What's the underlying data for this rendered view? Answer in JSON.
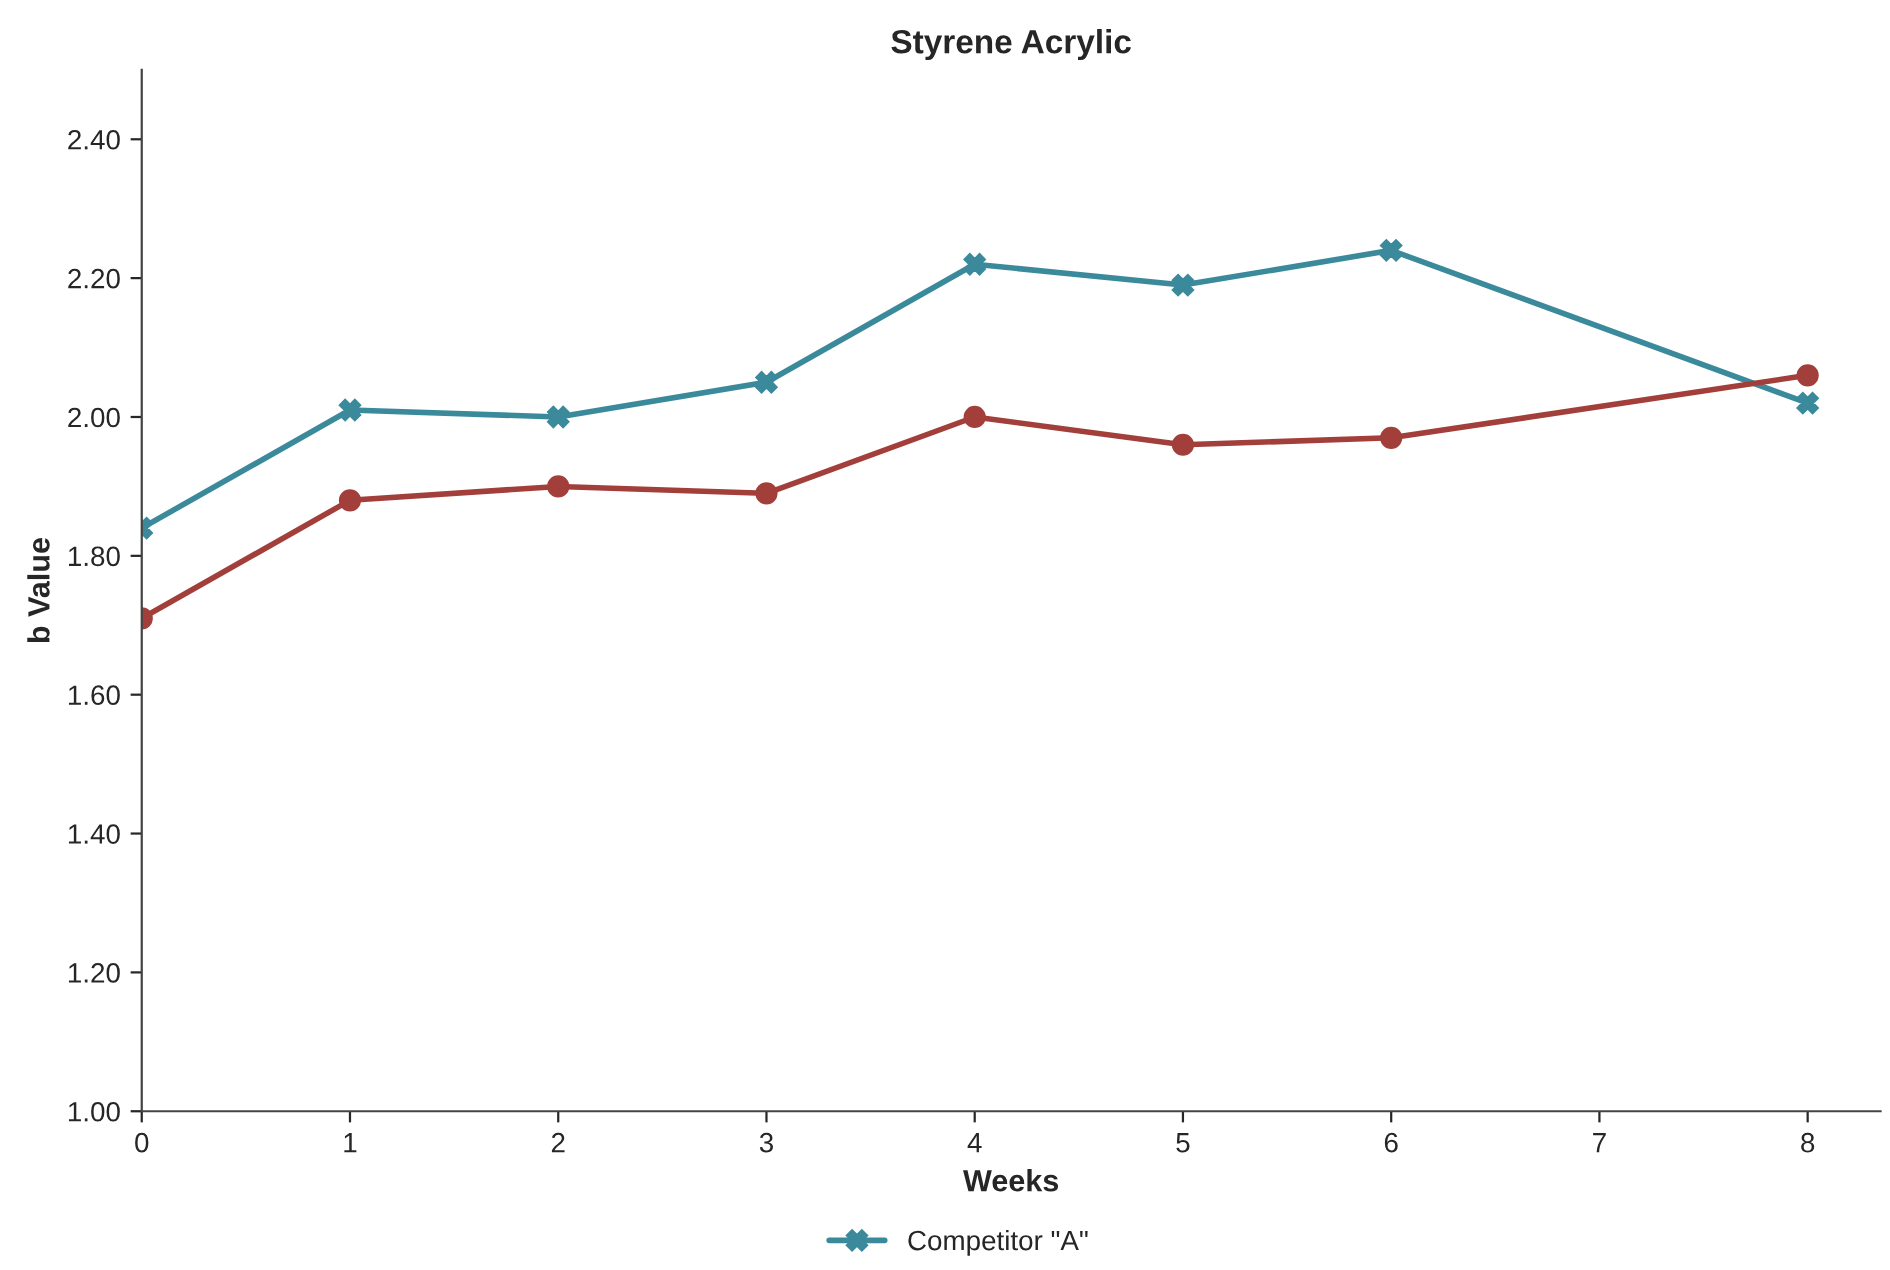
{
  "chart_data": {
    "type": "line",
    "title": "Styrene Acrylic",
    "xlabel": "Weeks",
    "ylabel": "b Value",
    "xlim": [
      0,
      8.35
    ],
    "xticks": [
      0,
      1,
      2,
      3,
      4,
      5,
      6,
      7,
      8
    ],
    "ylim": [
      1.0,
      2.5
    ],
    "yticks": [
      {
        "value": 1.0,
        "label": "1.00"
      },
      {
        "value": 1.2,
        "label": "1.20"
      },
      {
        "value": 1.4,
        "label": "1.40"
      },
      {
        "value": 1.6,
        "label": "1.60"
      },
      {
        "value": 1.8,
        "label": "1.80"
      },
      {
        "value": 2.0,
        "label": "2.00"
      },
      {
        "value": 2.2,
        "label": "2.20"
      },
      {
        "value": 2.4,
        "label": "2.40"
      }
    ],
    "grid": false,
    "legend": "bottom",
    "series": [
      {
        "name": "Competitor \"A\"",
        "color": "#3b8a9c",
        "marker": "cross",
        "x": [
          0,
          1,
          2,
          3,
          4,
          5,
          6,
          8
        ],
        "values": [
          1.84,
          2.01,
          2.0,
          2.05,
          2.22,
          2.19,
          2.24,
          2.02
        ]
      },
      {
        "color": "#a33f3b",
        "marker": "circle",
        "x": [
          0,
          1,
          2,
          3,
          4,
          5,
          6,
          8
        ],
        "values": [
          1.71,
          1.88,
          1.9,
          1.89,
          2.0,
          1.96,
          1.97,
          2.06
        ]
      }
    ]
  }
}
